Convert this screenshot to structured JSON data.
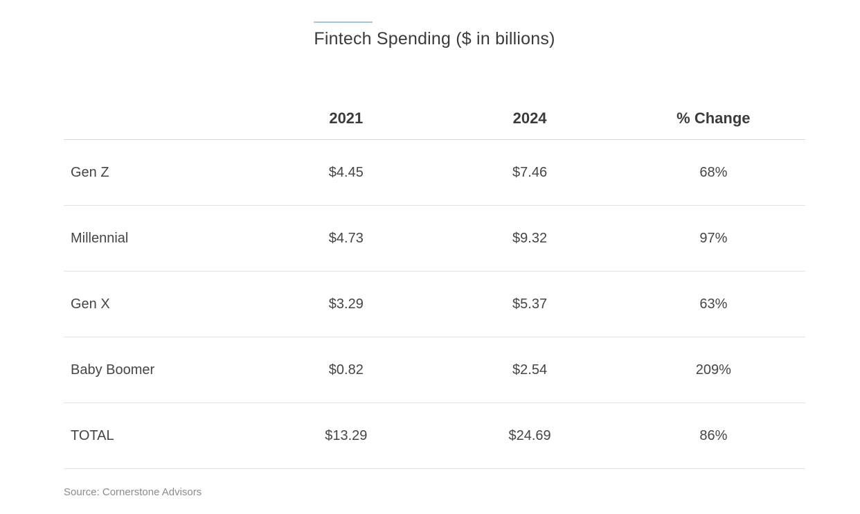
{
  "chart_data": {
    "type": "table",
    "title": "Fintech Spending ($ in billions)",
    "columns": [
      "2021",
      "2024",
      "% Change"
    ],
    "rows": [
      {
        "label": "Gen Z",
        "values": [
          "$4.45",
          "$7.46",
          "68%"
        ]
      },
      {
        "label": "Millennial",
        "values": [
          "$4.73",
          "$9.32",
          "97%"
        ]
      },
      {
        "label": "Gen X",
        "values": [
          "$3.29",
          "$5.37",
          "63%"
        ]
      },
      {
        "label": "Baby Boomer",
        "values": [
          "$0.82",
          "$2.54",
          "209%"
        ]
      },
      {
        "label": "TOTAL",
        "values": [
          "$13.29",
          "$24.69",
          "86%"
        ]
      }
    ],
    "source": "Source: Cornerstone Advisors",
    "accent_color": "#a6c4de",
    "layout": {
      "grid": "horizontal-row-dividers",
      "value_alignment": "center",
      "label_alignment": "left"
    }
  }
}
